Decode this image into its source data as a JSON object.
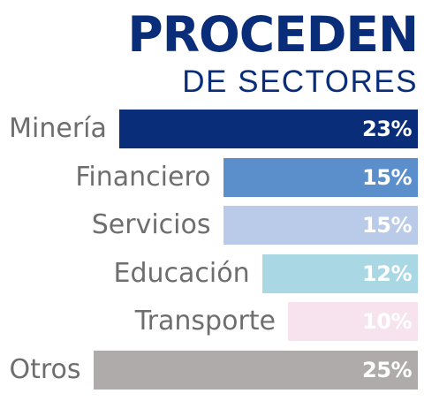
{
  "header": {
    "title": "PROCEDEN",
    "subtitle": "DE SECTORES"
  },
  "colors": {
    "title": "#0a2d7a",
    "category_text": "#6e6e6e",
    "value_text": "#ffffff"
  },
  "chart_data": {
    "type": "bar",
    "orientation": "horizontal",
    "title": "PROCEDEN",
    "subtitle": "DE SECTORES",
    "xlabel": "",
    "ylabel": "",
    "grid": false,
    "categories": [
      "Minería",
      "Financiero",
      "Servicios",
      "Educación",
      "Transporte",
      "Otros"
    ],
    "values": [
      23,
      15,
      15,
      12,
      10,
      25
    ],
    "value_labels": [
      "23%",
      "15%",
      "15%",
      "12%",
      "10%",
      "25%"
    ],
    "bar_colors": [
      "#0a2d7a",
      "#5b8fcc",
      "#b9cbe8",
      "#a9d8e4",
      "#f6e3ee",
      "#b0abab"
    ],
    "unit": "%"
  }
}
